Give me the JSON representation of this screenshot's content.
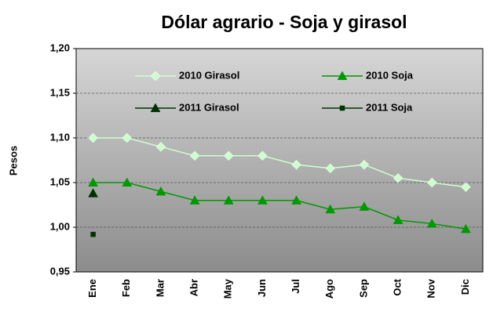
{
  "chart_data": {
    "type": "line",
    "title": "Dólar agrario - Soja y girasol",
    "y_label": "Pesos",
    "categories": [
      "Ene",
      "Feb",
      "Mar",
      "Abr",
      "May",
      "Jun",
      "Jul",
      "Ago",
      "Sep",
      "Oct",
      "Nov",
      "Dic"
    ],
    "series": [
      {
        "name": "2010 Girasol",
        "color": "#ccffcc",
        "marker": "diamond",
        "values": [
          1.1,
          1.1,
          1.09,
          1.08,
          1.08,
          1.08,
          1.07,
          1.066,
          1.07,
          1.055,
          1.05,
          1.045
        ]
      },
      {
        "name": "2010 Soja",
        "color": "#009900",
        "marker": "triangle",
        "values": [
          1.05,
          1.05,
          1.04,
          1.03,
          1.03,
          1.03,
          1.03,
          1.02,
          1.023,
          1.008,
          1.004,
          0.998
        ]
      },
      {
        "name": "2011 Girasol",
        "color": "#003300",
        "marker": "triangle",
        "values": [
          1.038,
          null,
          null,
          null,
          null,
          null,
          null,
          null,
          null,
          null,
          null,
          null
        ]
      },
      {
        "name": "2011 Soja",
        "color": "#003300",
        "marker": "square",
        "values": [
          0.992,
          null,
          null,
          null,
          null,
          null,
          null,
          null,
          null,
          null,
          null,
          null
        ]
      }
    ],
    "ylim": [
      0.95,
      1.2
    ],
    "yticks": [
      {
        "value": 0.95,
        "label": "0,95"
      },
      {
        "value": 1.0,
        "label": "1,00"
      },
      {
        "value": 1.05,
        "label": "1,05"
      },
      {
        "value": 1.1,
        "label": "1,10"
      },
      {
        "value": 1.15,
        "label": "1,15"
      },
      {
        "value": 1.2,
        "label": "1,20"
      }
    ],
    "grid": true,
    "legend": "top"
  }
}
